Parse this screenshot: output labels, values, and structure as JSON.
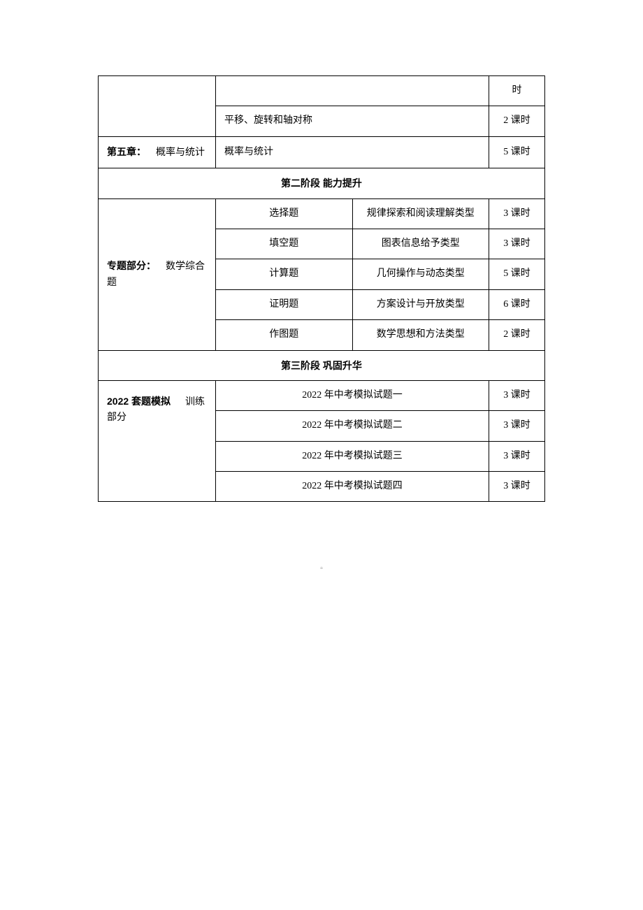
{
  "table": {
    "col_widths": {
      "col1": 168,
      "hours": 80,
      "sub1": 100
    },
    "colors": {
      "border": "#000000",
      "text": "#000000",
      "background": "#ffffff",
      "footer": "#808080"
    },
    "fonts": {
      "regular": "SimSun",
      "bold": "Microsoft YaHei",
      "base_size": 14,
      "footer_size": 10
    }
  },
  "rows": [
    {
      "type": "top",
      "cells": {
        "blank": "",
        "content": "",
        "hours": "时"
      }
    },
    {
      "type": "sub",
      "cells": {
        "content": "平移、旋转和轴对称",
        "hours": "2 课时"
      }
    },
    {
      "type": "chapter",
      "cells": {
        "label_bold": "第五章：",
        "label_rest": "概率与统计",
        "content": "概率与统计",
        "hours": "5 课时"
      }
    },
    {
      "type": "header",
      "text": "第二阶段    能力提升"
    },
    {
      "type": "triple",
      "cells": {
        "sub1": "选择题",
        "sub2": "规律探索和阅读理解类型",
        "hours": "3 课时"
      }
    },
    {
      "type": "triple",
      "cells": {
        "sub1": "填空题",
        "sub2": "图表信息给予类型",
        "hours": "3 课时"
      }
    },
    {
      "type": "triple-first",
      "cells": {
        "label_bold": "专题部分：",
        "label_rest": "数学综合题",
        "sub1": "计算题",
        "sub2": "几何操作与动态类型",
        "hours": "5 课时"
      }
    },
    {
      "type": "triple",
      "cells": {
        "sub1": "证明题",
        "sub2": "方案设计与开放类型",
        "hours": "6 课时"
      }
    },
    {
      "type": "triple",
      "cells": {
        "sub1": "作图题",
        "sub2": "数学思想和方法类型",
        "hours": "2 课时"
      }
    },
    {
      "type": "header",
      "text": "第三阶段    巩固升华"
    },
    {
      "type": "double",
      "cells": {
        "content": "2022 年中考模拟试题一",
        "hours": "3 课时"
      }
    },
    {
      "type": "double-first",
      "cells": {
        "label_bold": "2022 套题模拟",
        "label_rest": "训练部分",
        "content": "2022 年中考模拟试题二",
        "hours": "3 课时"
      }
    },
    {
      "type": "double",
      "cells": {
        "content": "2022 年中考模拟试题三",
        "hours": "3 课时"
      }
    },
    {
      "type": "double",
      "cells": {
        "content": "2022 年中考模拟试题四",
        "hours": "3 课时"
      }
    }
  ],
  "footer_marker": "▫"
}
